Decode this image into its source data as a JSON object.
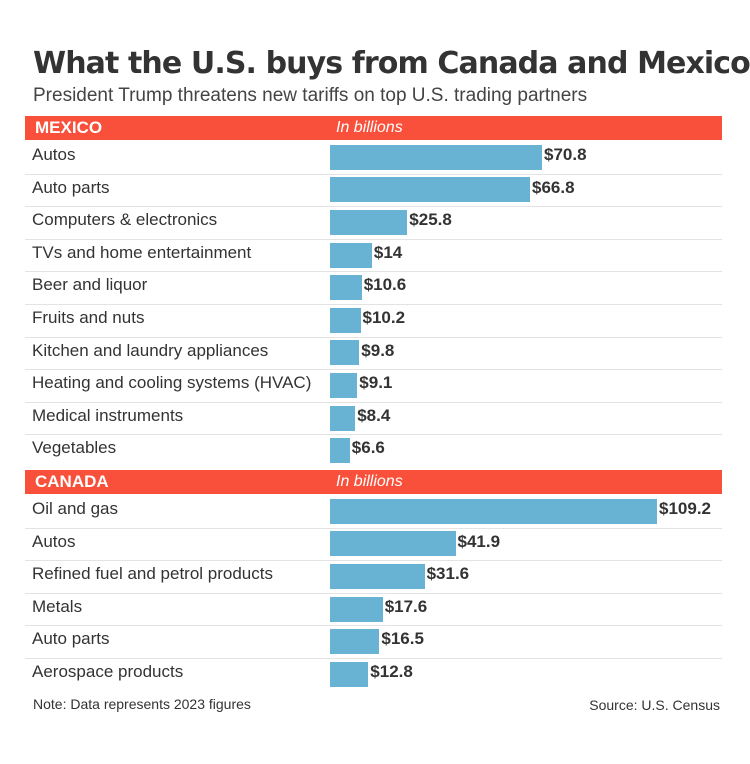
{
  "title": "What the U.S. buys from Canada and Mexico",
  "subtitle": "President Trump threatens new tariffs on top U.S. trading partners",
  "colors": {
    "header_bg": "#f8503a",
    "bar": "#68b3d3",
    "text": "#333333"
  },
  "chart_data": [
    {
      "type": "bar",
      "orientation": "horizontal",
      "section": "MEXICO",
      "unit_label": "In billions",
      "categories": [
        "Autos",
        "Auto parts",
        "Computers & electronics",
        "TVs and  home entertainment",
        "Beer and liquor",
        "Fruits and nuts",
        "Kitchen and laundry appliances",
        "Heating and cooling systems (HVAC)",
        "Medical instruments",
        "Vegetables"
      ],
      "values": [
        70.8,
        66.8,
        25.8,
        14,
        10.6,
        10.2,
        9.8,
        9.1,
        8.4,
        6.6
      ],
      "value_labels": [
        "$70.8",
        "$66.8",
        "$25.8",
        "$14",
        "$10.6",
        "$10.2",
        "$9.8",
        "$9.1",
        "$8.4",
        "$6.6"
      ]
    },
    {
      "type": "bar",
      "orientation": "horizontal",
      "section": "CANADA",
      "unit_label": "In billions",
      "categories": [
        "Oil and gas",
        "Autos",
        "Refined fuel and petrol products",
        "Metals",
        "Auto parts",
        "Aerospace products"
      ],
      "values": [
        109.2,
        41.9,
        31.6,
        17.6,
        16.5,
        12.8
      ],
      "value_labels": [
        "$109.2",
        "$41.9",
        "$31.6",
        "$17.6",
        "$16.5",
        "$12.8"
      ]
    }
  ],
  "footer": {
    "note": "Note: Data represents 2023 figures",
    "source": "Source: U.S. Census"
  }
}
